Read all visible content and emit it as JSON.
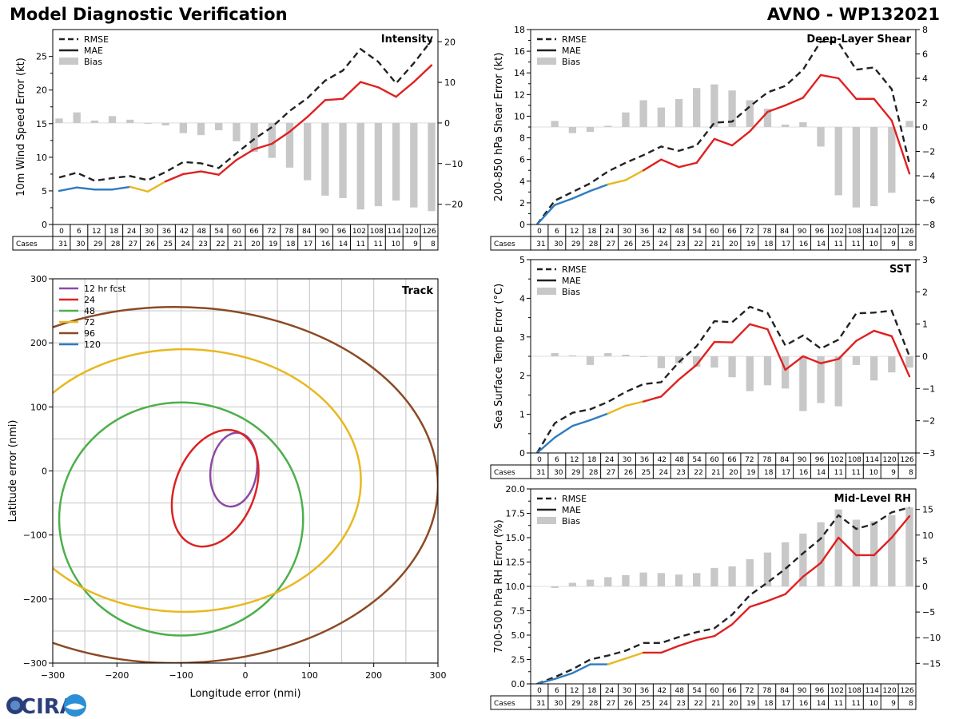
{
  "header": {
    "left_title": "Model Diagnostic Verification",
    "right_title": "AVNO - WP132021"
  },
  "logo": {
    "text": "CIRA"
  },
  "legend_labels": {
    "rmse": "RMSE",
    "mae": "MAE",
    "bias": "Bias"
  },
  "cases_label": "Cases",
  "colors": {
    "rmse": "#222222",
    "bias": "#c8c8c8",
    "early": "#2f7bbf",
    "mid": "#e8b820",
    "late": "#e02020",
    "grid": "#cccccc"
  },
  "forecast_hours": [
    0,
    6,
    12,
    18,
    24,
    30,
    36,
    42,
    48,
    54,
    60,
    66,
    72,
    78,
    84,
    90,
    96,
    102,
    108,
    114,
    120,
    126
  ],
  "cases": [
    31,
    30,
    29,
    28,
    27,
    26,
    25,
    24,
    23,
    22,
    21,
    20,
    19,
    18,
    17,
    16,
    14,
    11,
    11,
    10,
    9,
    8
  ],
  "chart_data": [
    {
      "id": "intensity",
      "type": "line",
      "title": "Intensity",
      "ylabel": "10m Wind Speed Error (kt)",
      "ylim": [
        0,
        29
      ],
      "yticks": [
        0,
        5,
        10,
        15,
        20,
        25
      ],
      "y2lim": [
        -25,
        23
      ],
      "y2ticks": [
        -20,
        -10,
        0,
        10,
        20
      ],
      "x": [
        0,
        6,
        12,
        18,
        24,
        30,
        36,
        42,
        48,
        54,
        60,
        66,
        72,
        78,
        84,
        90,
        96,
        102,
        108,
        114,
        120,
        126
      ],
      "rmse": [
        7.0,
        7.7,
        6.5,
        6.9,
        7.2,
        6.6,
        7.8,
        9.3,
        9.1,
        8.4,
        10.6,
        12.7,
        14.5,
        16.9,
        18.8,
        21.4,
        22.9,
        26.1,
        24.2,
        21.0,
        24.0,
        27.4
      ],
      "mae": [
        5.0,
        5.5,
        5.2,
        5.2,
        5.6,
        4.9,
        6.4,
        7.5,
        7.9,
        7.4,
        9.6,
        11.2,
        12.0,
        13.8,
        16.0,
        18.5,
        18.7,
        21.2,
        20.4,
        19.0,
        21.2,
        23.7
      ],
      "bias": [
        1.1,
        2.6,
        0.6,
        1.7,
        0.8,
        -0.1,
        -0.6,
        -2.5,
        -3.0,
        -1.8,
        -4.5,
        -7.1,
        -8.6,
        -11.0,
        -14.1,
        -17.9,
        -18.5,
        -21.3,
        -20.5,
        -19.1,
        -20.8,
        -21.7
      ]
    },
    {
      "id": "shear",
      "type": "line",
      "title": "Deep-Layer Shear",
      "ylabel": "200-850 hPa Shear Error (kt)",
      "ylim": [
        0,
        18
      ],
      "yticks": [
        0,
        2,
        4,
        6,
        8,
        10,
        12,
        14,
        16,
        18
      ],
      "y2lim": [
        -8,
        8
      ],
      "y2ticks": [
        -8,
        -6,
        -4,
        -2,
        0,
        2,
        4,
        6,
        8
      ],
      "x": [
        0,
        6,
        12,
        18,
        24,
        30,
        36,
        42,
        48,
        54,
        60,
        66,
        72,
        78,
        84,
        90,
        96,
        102,
        108,
        114,
        120,
        126
      ],
      "rmse": [
        0.0,
        2.2,
        3.0,
        3.8,
        4.9,
        5.7,
        6.4,
        7.2,
        6.8,
        7.3,
        9.4,
        9.5,
        10.9,
        12.2,
        12.8,
        14.3,
        16.9,
        16.8,
        14.3,
        14.5,
        12.5,
        5.6
      ],
      "mae": [
        0.0,
        1.8,
        2.4,
        3.1,
        3.7,
        4.1,
        5.0,
        6.0,
        5.3,
        5.7,
        7.9,
        7.3,
        8.6,
        10.4,
        11.0,
        11.7,
        13.8,
        13.5,
        11.6,
        11.6,
        9.6,
        4.7
      ],
      "bias": [
        0.0,
        0.5,
        -0.5,
        -0.4,
        0.1,
        1.2,
        2.2,
        1.6,
        2.3,
        3.2,
        3.5,
        3.0,
        2.2,
        1.5,
        0.2,
        0.4,
        -1.6,
        -5.6,
        -6.6,
        -6.5,
        -5.4,
        0.5
      ]
    },
    {
      "id": "sst",
      "type": "line",
      "title": "SST",
      "ylabel": "Sea Surface Temp Error (°C)",
      "ylim": [
        0,
        5
      ],
      "yticks": [
        0,
        1,
        2,
        3,
        4,
        5
      ],
      "y2lim": [
        -3,
        3
      ],
      "y2ticks": [
        -3,
        -2,
        -1,
        0,
        1,
        2,
        3
      ],
      "x": [
        0,
        6,
        12,
        18,
        24,
        30,
        36,
        42,
        48,
        54,
        60,
        66,
        72,
        78,
        84,
        90,
        96,
        102,
        108,
        114,
        120,
        126
      ],
      "rmse": [
        0.0,
        0.77,
        1.04,
        1.13,
        1.32,
        1.58,
        1.78,
        1.83,
        2.35,
        2.76,
        3.41,
        3.38,
        3.78,
        3.62,
        2.78,
        3.04,
        2.7,
        2.93,
        3.61,
        3.63,
        3.68,
        2.5
      ],
      "mae": [
        0.0,
        0.4,
        0.7,
        0.85,
        1.02,
        1.22,
        1.33,
        1.46,
        1.9,
        2.28,
        2.87,
        2.86,
        3.33,
        3.2,
        2.15,
        2.5,
        2.32,
        2.43,
        2.9,
        3.16,
        3.02,
        1.98
      ],
      "bias": [
        0.0,
        0.1,
        0.03,
        -0.27,
        0.1,
        0.05,
        -0.02,
        -0.37,
        -0.22,
        -0.33,
        -0.35,
        -0.65,
        -1.08,
        -0.9,
        -1.0,
        -1.7,
        -1.45,
        -1.55,
        -0.27,
        -0.75,
        -0.5,
        -0.35
      ]
    },
    {
      "id": "rh",
      "type": "line",
      "title": "Mid-Level RH",
      "ylabel": "700-500 hPa RH Error (%)",
      "ylim": [
        0,
        20
      ],
      "yticks": [
        0.0,
        2.5,
        5.0,
        7.5,
        10.0,
        12.5,
        15.0,
        17.5,
        20.0
      ],
      "y2lim": [
        -19,
        19
      ],
      "y2ticks": [
        -15,
        -10,
        -5,
        0,
        5,
        10,
        15
      ],
      "x": [
        0,
        6,
        12,
        18,
        24,
        30,
        36,
        42,
        48,
        54,
        60,
        66,
        72,
        78,
        84,
        90,
        96,
        102,
        108,
        114,
        120,
        126
      ],
      "rmse": [
        0.0,
        0.7,
        1.5,
        2.5,
        2.9,
        3.4,
        4.2,
        4.2,
        4.8,
        5.3,
        5.7,
        7.1,
        9.1,
        10.4,
        11.8,
        13.4,
        14.9,
        17.3,
        15.9,
        16.4,
        17.6,
        18.1
      ],
      "mae": [
        0.0,
        0.5,
        1.1,
        2.0,
        2.0,
        2.6,
        3.2,
        3.2,
        3.9,
        4.5,
        4.9,
        6.1,
        7.9,
        8.5,
        9.2,
        11.0,
        12.4,
        15.0,
        13.2,
        13.2,
        15.0,
        17.2
      ],
      "bias": [
        0.0,
        -0.3,
        0.7,
        1.3,
        1.8,
        2.2,
        2.7,
        2.6,
        2.3,
        2.6,
        3.6,
        3.9,
        5.3,
        6.6,
        8.6,
        10.3,
        12.5,
        15.0,
        13.0,
        12.7,
        13.9,
        15.4
      ]
    },
    {
      "id": "track",
      "type": "scatter",
      "title": "Track",
      "xlabel": "Longitude error (nmi)",
      "ylabel": "Latitude error (nmi)",
      "xlim": [
        -300,
        300
      ],
      "ylim": [
        -300,
        300
      ],
      "xticks": [
        -300,
        -200,
        -100,
        0,
        100,
        200,
        300
      ],
      "yticks": [
        -300,
        -200,
        -100,
        0,
        100,
        200,
        300
      ],
      "grid_step": 50,
      "series": [
        {
          "name": "12 hr fcst",
          "color": "#8b4aa6",
          "cx": -18,
          "cy": 2,
          "rx": 36,
          "ry": 58,
          "angle": 8
        },
        {
          "name": "24",
          "color": "#dd2222",
          "cx": -47,
          "cy": -27,
          "rx": 62,
          "ry": 95,
          "angle": 22
        },
        {
          "name": "48",
          "color": "#4caf4c",
          "cx": -100,
          "cy": -75,
          "rx": 190,
          "ry": 182,
          "angle": 0
        },
        {
          "name": "72",
          "color": "#e8b820",
          "cx": -95,
          "cy": -15,
          "rx": 275,
          "ry": 205,
          "angle": 0
        },
        {
          "name": "96",
          "color": "#8b4a24",
          "cx": -110,
          "cy": -22,
          "rx": 410,
          "ry": 278,
          "angle": 0
        },
        {
          "name": "120",
          "color": "#2f7bbf",
          "cx": 0,
          "cy": 0,
          "rx": 0,
          "ry": 0,
          "angle": 0
        }
      ]
    }
  ]
}
